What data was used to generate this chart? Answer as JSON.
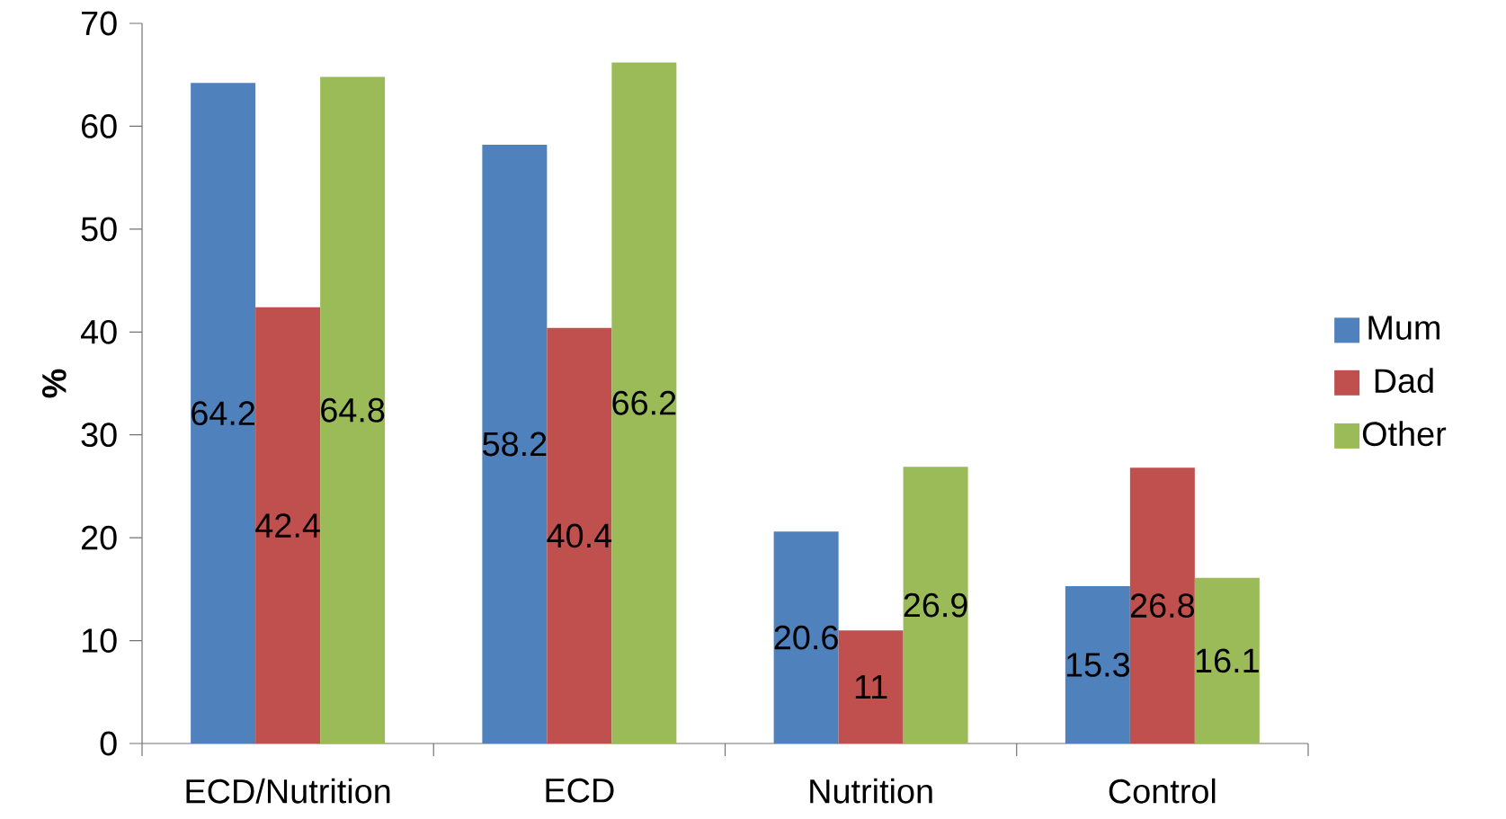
{
  "chart_data": {
    "type": "bar",
    "ylabel": "%",
    "categories": [
      "ECD/Nutrition",
      "ECD",
      "Nutrition",
      "Control"
    ],
    "series": [
      {
        "name": "Mum",
        "color": "#4f81bd",
        "values": [
          64.2,
          58.2,
          20.6,
          15.3
        ]
      },
      {
        "name": "Dad",
        "color": "#c0504d",
        "values": [
          42.4,
          40.4,
          11,
          26.8
        ]
      },
      {
        "name": "Other",
        "color": "#9bbb59",
        "values": [
          64.8,
          66.2,
          26.9,
          16.1
        ]
      }
    ],
    "ylim": [
      0,
      70
    ],
    "yticks": [
      0,
      10,
      20,
      30,
      40,
      50,
      60,
      70
    ],
    "data_labels": true,
    "legend": "right",
    "grid": false
  }
}
